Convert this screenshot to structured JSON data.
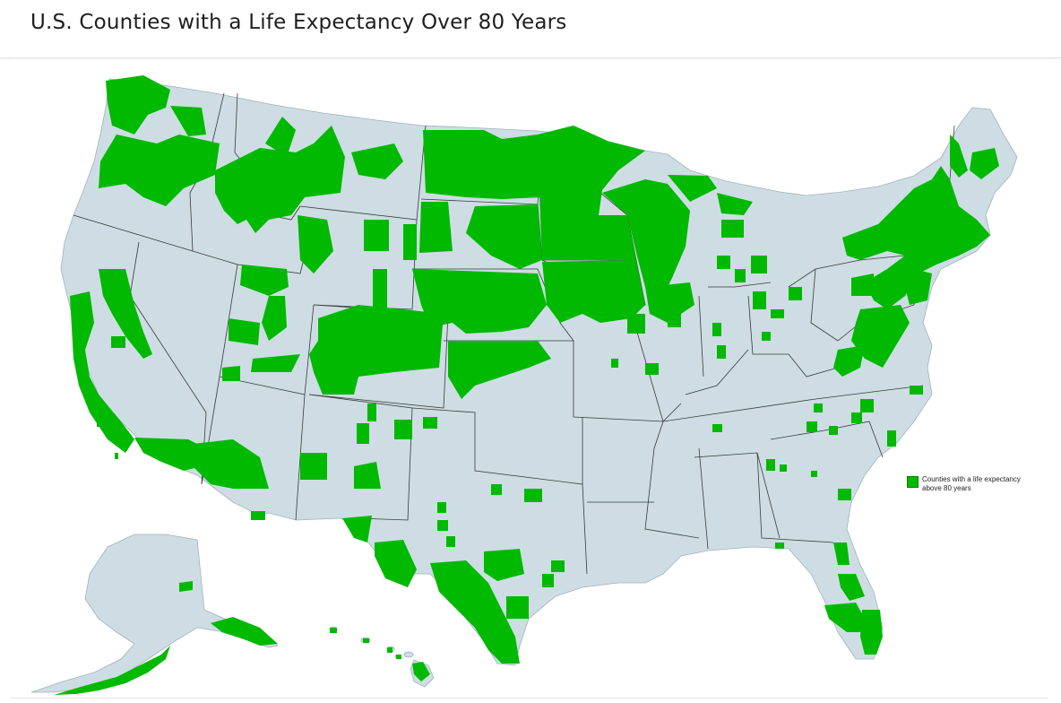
{
  "header": {
    "title": "U.S. Counties with a Life Expectancy Over 80 Years"
  },
  "legend": {
    "label": "Counties with a life expectancy above 80 years",
    "swatch_color": "#00b900"
  },
  "map": {
    "land_color": "#cddde3",
    "highlight_color": "#00b900",
    "border_color": "#3a3a3a"
  }
}
